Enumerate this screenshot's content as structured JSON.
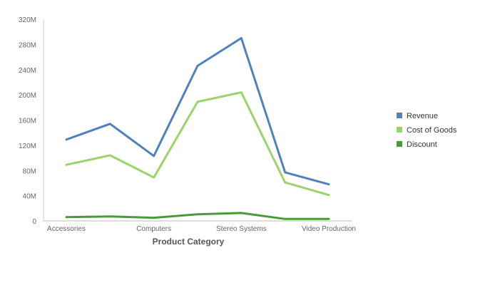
{
  "chart_data": {
    "type": "line",
    "title": "",
    "xlabel": "Product Category",
    "ylabel": "",
    "categories": [
      "Accessories",
      "",
      "Computers",
      "",
      "Stereo Systems",
      "",
      "Video Production"
    ],
    "y_ticks": [
      "0",
      "40M",
      "80M",
      "120M",
      "160M",
      "200M",
      "240M",
      "280M",
      "320M"
    ],
    "ylim": [
      0,
      320000000
    ],
    "grid": false,
    "legend_position": "right",
    "series": [
      {
        "name": "Revenue",
        "color": "#4f81bd",
        "values": [
          129000000,
          154000000,
          103000000,
          246000000,
          290000000,
          77000000,
          58000000
        ]
      },
      {
        "name": "Cost of Goods",
        "color": "#9bd46a",
        "values": [
          89000000,
          104000000,
          69000000,
          189000000,
          204000000,
          61000000,
          41000000
        ]
      },
      {
        "name": "Discount",
        "color": "#4a9a3c",
        "values": [
          6000000,
          7000000,
          5000000,
          10500000,
          12500000,
          3000000,
          3000000
        ]
      }
    ]
  }
}
